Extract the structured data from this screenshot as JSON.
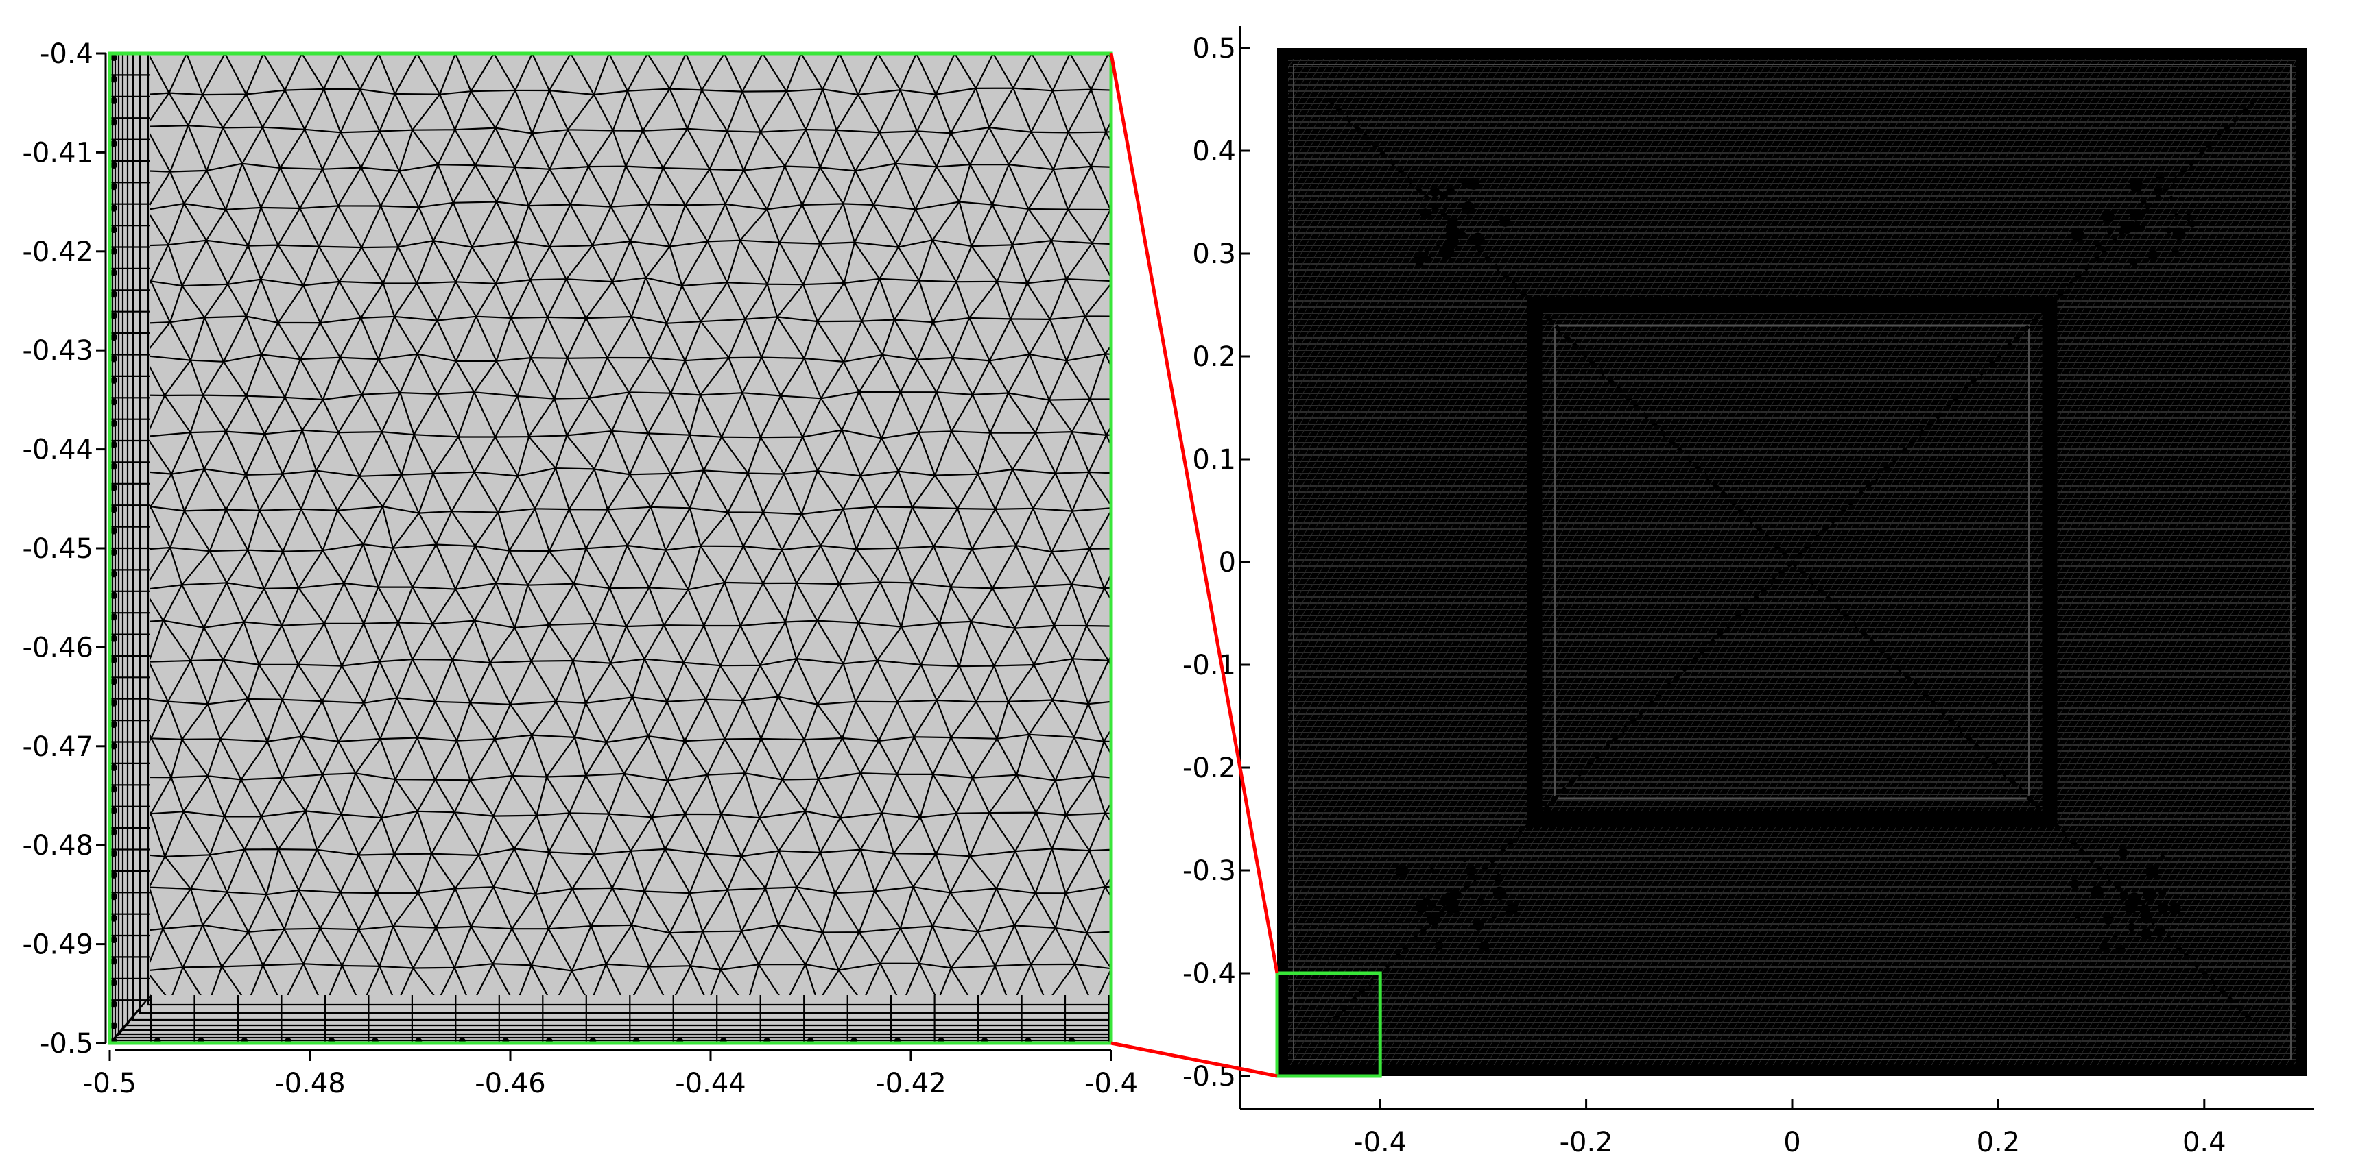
{
  "figure": {
    "colors": {
      "background": "#ffffff",
      "mesh_fill": "#c8c8c8",
      "mesh_line": "#000000",
      "boundary_highlight": "#39e639",
      "zoom_connector": "#ff0000",
      "full_mesh_fill": "#000000"
    },
    "left_panel": {
      "x_tick_labels": [
        "-0.5",
        "-0.48",
        "-0.46",
        "-0.44",
        "-0.42",
        "-0.4"
      ],
      "x_tick_values": [
        -0.5,
        -0.48,
        -0.46,
        -0.44,
        -0.42,
        -0.4
      ],
      "y_tick_labels": [
        "-0.4",
        "-0.41",
        "-0.42",
        "-0.43",
        "-0.44",
        "-0.45",
        "-0.46",
        "-0.47",
        "-0.48",
        "-0.49",
        "-0.5"
      ],
      "y_tick_values": [
        -0.4,
        -0.41,
        -0.42,
        -0.43,
        -0.44,
        -0.45,
        -0.46,
        -0.47,
        -0.48,
        -0.49,
        -0.5
      ],
      "xlim": [
        -0.5,
        -0.4
      ],
      "ylim": [
        -0.5,
        -0.4
      ]
    },
    "right_panel": {
      "x_tick_labels": [
        "-0.4",
        "-0.2",
        "0",
        "0.2",
        "0.4"
      ],
      "x_tick_values": [
        -0.4,
        -0.2,
        0,
        0.2,
        0.4
      ],
      "y_tick_labels": [
        "0.5",
        "0.4",
        "0.3",
        "0.2",
        "0.1",
        "0",
        "-0.1",
        "-0.2",
        "-0.3",
        "-0.4",
        "-0.5"
      ],
      "y_tick_values": [
        0.5,
        0.4,
        0.3,
        0.2,
        0.1,
        0,
        -0.1,
        -0.2,
        -0.3,
        -0.4,
        -0.5
      ],
      "xlim": [
        -0.5,
        0.5
      ],
      "ylim": [
        -0.5,
        0.5
      ],
      "inner_square": [
        -0.25,
        0.25
      ],
      "zoom_region": {
        "x": [
          -0.5,
          -0.4
        ],
        "y": [
          -0.5,
          -0.4
        ]
      }
    }
  }
}
